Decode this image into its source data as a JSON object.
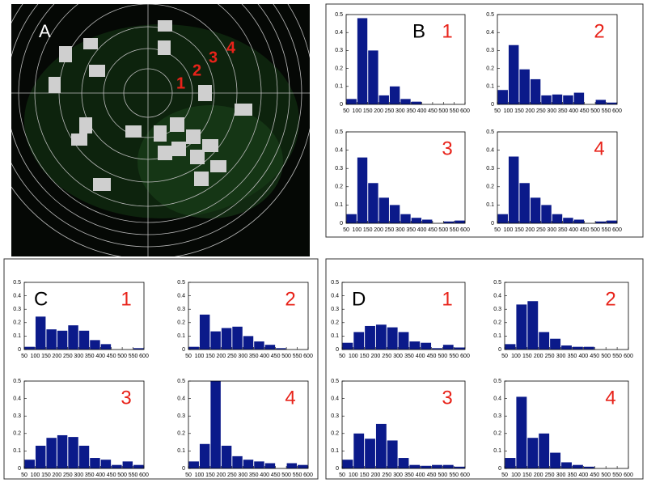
{
  "image": {
    "label": "A",
    "markers": [
      "1",
      "2",
      "3",
      "4"
    ]
  },
  "chart_data": [
    {
      "type": "histogram",
      "panel": "B",
      "label": "1",
      "bins": [
        50,
        100,
        150,
        200,
        250,
        300,
        350,
        400,
        450,
        500,
        550,
        600
      ],
      "values": [
        0.03,
        0.48,
        0.3,
        0.05,
        0.1,
        0.03,
        0.015,
        0,
        0,
        0,
        0
      ],
      "color": "#0b1a8a",
      "xlim": [
        50,
        600
      ],
      "xticks": [
        50,
        100,
        150,
        200,
        250,
        300,
        350,
        400,
        450,
        500,
        550,
        600
      ],
      "ylim": [
        0,
        0.5
      ],
      "yticks": [
        0,
        0.1,
        0.2,
        0.3,
        0.4,
        0.5
      ]
    },
    {
      "type": "histogram",
      "label": "2",
      "bins": [
        50,
        100,
        150,
        200,
        250,
        300,
        350,
        400,
        450,
        500,
        550,
        600
      ],
      "values": [
        0.08,
        0.33,
        0.195,
        0.14,
        0.05,
        0.055,
        0.05,
        0.065,
        0,
        0.025,
        0.01
      ],
      "color": "#0b1a8a",
      "xlim": [
        50,
        600
      ],
      "xticks": [
        50,
        100,
        150,
        200,
        250,
        300,
        350,
        400,
        450,
        500,
        550,
        600
      ],
      "ylim": [
        0,
        0.5
      ],
      "yticks": [
        0,
        0.1,
        0.2,
        0.3,
        0.4,
        0.5
      ]
    },
    {
      "type": "histogram",
      "label": "3",
      "bins": [
        50,
        100,
        150,
        200,
        250,
        300,
        350,
        400,
        450,
        500,
        550,
        600
      ],
      "values": [
        0.05,
        0.36,
        0.22,
        0.14,
        0.1,
        0.05,
        0.03,
        0.02,
        0,
        0.01,
        0.015
      ],
      "color": "#0b1a8a",
      "xlim": [
        50,
        600
      ],
      "xticks": [
        50,
        100,
        150,
        200,
        250,
        300,
        350,
        400,
        450,
        500,
        550,
        600
      ],
      "ylim": [
        0,
        0.5
      ],
      "yticks": [
        0,
        0.1,
        0.2,
        0.3,
        0.4,
        0.5
      ]
    },
    {
      "type": "histogram",
      "label": "4",
      "bins": [
        50,
        100,
        150,
        200,
        250,
        300,
        350,
        400,
        450,
        500,
        550,
        600
      ],
      "values": [
        0.05,
        0.365,
        0.22,
        0.14,
        0.1,
        0.05,
        0.03,
        0.02,
        0,
        0.01,
        0.015
      ],
      "color": "#0b1a8a",
      "xlim": [
        50,
        600
      ],
      "xticks": [
        50,
        100,
        150,
        200,
        250,
        300,
        350,
        400,
        450,
        500,
        550,
        600
      ],
      "ylim": [
        0,
        0.5
      ],
      "yticks": [
        0,
        0.1,
        0.2,
        0.3,
        0.4,
        0.5
      ]
    },
    {
      "type": "histogram",
      "panel": "C",
      "label": "1",
      "bins": [
        50,
        100,
        150,
        200,
        250,
        300,
        350,
        400,
        450,
        500,
        550,
        600
      ],
      "values": [
        0.02,
        0.245,
        0.15,
        0.14,
        0.18,
        0.14,
        0.07,
        0.04,
        0,
        0,
        0.01
      ],
      "color": "#0b1a8a",
      "xlim": [
        50,
        600
      ],
      "xticks": [
        50,
        100,
        150,
        200,
        250,
        300,
        350,
        400,
        450,
        500,
        550,
        600
      ],
      "ylim": [
        0,
        0.5
      ],
      "yticks": [
        0,
        0.1,
        0.2,
        0.3,
        0.4,
        0.5
      ]
    },
    {
      "type": "histogram",
      "label": "2",
      "bins": [
        50,
        100,
        150,
        200,
        250,
        300,
        350,
        400,
        450,
        500,
        550,
        600
      ],
      "values": [
        0.02,
        0.26,
        0.135,
        0.16,
        0.17,
        0.1,
        0.06,
        0.035,
        0.01,
        0,
        0
      ],
      "color": "#0b1a8a",
      "xlim": [
        50,
        600
      ],
      "xticks": [
        50,
        100,
        150,
        200,
        250,
        300,
        350,
        400,
        450,
        500,
        550,
        600
      ],
      "ylim": [
        0,
        0.5
      ],
      "yticks": [
        0,
        0.1,
        0.2,
        0.3,
        0.4,
        0.5
      ]
    },
    {
      "type": "histogram",
      "label": "3",
      "bins": [
        50,
        100,
        150,
        200,
        250,
        300,
        350,
        400,
        450,
        500,
        550,
        600
      ],
      "values": [
        0.05,
        0.13,
        0.175,
        0.19,
        0.18,
        0.13,
        0.06,
        0.05,
        0.02,
        0.04,
        0.02
      ],
      "color": "#0b1a8a",
      "xlim": [
        50,
        600
      ],
      "xticks": [
        50,
        100,
        150,
        200,
        250,
        300,
        350,
        400,
        450,
        500,
        550,
        600
      ],
      "ylim": [
        0,
        0.5
      ],
      "yticks": [
        0,
        0.1,
        0.2,
        0.3,
        0.4,
        0.5
      ]
    },
    {
      "type": "histogram",
      "label": "4",
      "bins": [
        50,
        100,
        150,
        200,
        250,
        300,
        350,
        400,
        450,
        500,
        550,
        600
      ],
      "values": [
        0.04,
        0.14,
        0.5,
        0.13,
        0.07,
        0.05,
        0.04,
        0.03,
        0,
        0.03,
        0.02
      ],
      "color": "#0b1a8a",
      "xlim": [
        50,
        600
      ],
      "xticks": [
        50,
        100,
        150,
        200,
        250,
        300,
        350,
        400,
        450,
        500,
        550,
        600
      ],
      "ylim": [
        0,
        0.5
      ],
      "yticks": [
        0,
        0.1,
        0.2,
        0.3,
        0.4,
        0.5
      ]
    },
    {
      "type": "histogram",
      "panel": "D",
      "label": "1",
      "bins": [
        50,
        100,
        150,
        200,
        250,
        300,
        350,
        400,
        450,
        500,
        550,
        600
      ],
      "values": [
        0.05,
        0.13,
        0.175,
        0.185,
        0.165,
        0.13,
        0.06,
        0.05,
        0.01,
        0.035,
        0.015
      ],
      "color": "#0b1a8a",
      "xlim": [
        50,
        600
      ],
      "xticks": [
        50,
        100,
        150,
        200,
        250,
        300,
        350,
        400,
        450,
        500,
        550,
        600
      ],
      "ylim": [
        0,
        0.5
      ],
      "yticks": [
        0,
        0.1,
        0.2,
        0.3,
        0.4,
        0.5
      ]
    },
    {
      "type": "histogram",
      "label": "2",
      "bins": [
        50,
        100,
        150,
        200,
        250,
        300,
        350,
        400,
        450,
        500,
        550,
        600
      ],
      "values": [
        0.04,
        0.335,
        0.36,
        0.13,
        0.08,
        0.03,
        0.02,
        0.02,
        0,
        0,
        0
      ],
      "color": "#0b1a8a",
      "xlim": [
        50,
        600
      ],
      "xticks": [
        50,
        100,
        150,
        200,
        250,
        300,
        350,
        400,
        450,
        500,
        550,
        600
      ],
      "ylim": [
        0,
        0.5
      ],
      "yticks": [
        0,
        0.1,
        0.2,
        0.3,
        0.4,
        0.5
      ]
    },
    {
      "type": "histogram",
      "label": "3",
      "bins": [
        50,
        100,
        150,
        200,
        250,
        300,
        350,
        400,
        450,
        500,
        550,
        600
      ],
      "values": [
        0.05,
        0.2,
        0.17,
        0.255,
        0.16,
        0.06,
        0.02,
        0.015,
        0.02,
        0.02,
        0.01
      ],
      "color": "#0b1a8a",
      "xlim": [
        50,
        600
      ],
      "xticks": [
        50,
        100,
        150,
        200,
        250,
        300,
        350,
        400,
        450,
        500,
        550,
        600
      ],
      "ylim": [
        0,
        0.5
      ],
      "yticks": [
        0,
        0.1,
        0.2,
        0.3,
        0.4,
        0.5
      ]
    },
    {
      "type": "histogram",
      "label": "4",
      "bins": [
        50,
        100,
        150,
        200,
        250,
        300,
        350,
        400,
        450,
        500,
        550,
        600
      ],
      "values": [
        0.06,
        0.41,
        0.175,
        0.2,
        0.09,
        0.035,
        0.02,
        0.01,
        0,
        0,
        0
      ],
      "color": "#0b1a8a",
      "xlim": [
        50,
        600
      ],
      "xticks": [
        50,
        100,
        150,
        200,
        250,
        300,
        350,
        400,
        450,
        500,
        550,
        600
      ],
      "ylim": [
        0,
        0.5
      ],
      "yticks": [
        0,
        0.1,
        0.2,
        0.3,
        0.4,
        0.5
      ]
    }
  ]
}
